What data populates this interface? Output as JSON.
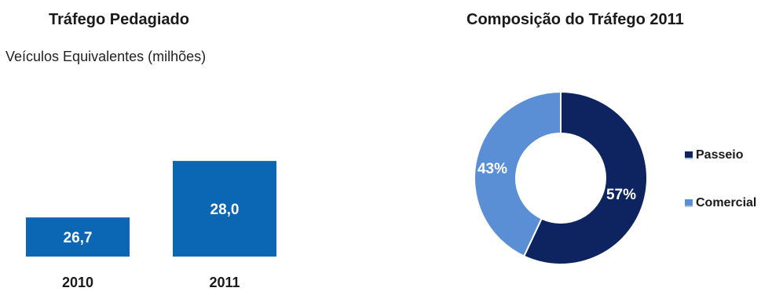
{
  "chart_data": [
    {
      "type": "bar",
      "title": "Tráfego Pedagiado",
      "subtitle": "Veículos Equivalentes (milhões)",
      "categories": [
        "2010",
        "2011"
      ],
      "values": [
        26.7,
        28.0
      ],
      "value_labels": [
        "26,7",
        "28,0"
      ],
      "color": "#0b67b3"
    },
    {
      "type": "pie",
      "variant": "donut",
      "title": "Composição do Tráfego 2011",
      "categories": [
        "Passeio",
        "Comercial"
      ],
      "values": [
        57,
        43
      ],
      "value_labels": [
        "57%",
        "43%"
      ],
      "colors": [
        "#0e2460",
        "#5b8fd5"
      ],
      "legend": "right"
    }
  ]
}
